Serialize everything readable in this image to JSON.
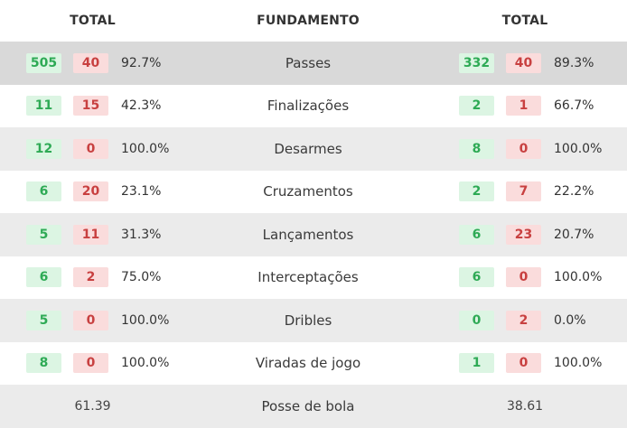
{
  "header": {
    "left": "TOTAL",
    "center": "FUNDAMENTO",
    "right": "TOTAL"
  },
  "rows": [
    {
      "name": "Passes",
      "left": {
        "good": "505",
        "bad": "40",
        "pct": "92.7%"
      },
      "right": {
        "good": "332",
        "bad": "40",
        "pct": "89.3%"
      }
    },
    {
      "name": "Finalizações",
      "left": {
        "good": "11",
        "bad": "15",
        "pct": "42.3%"
      },
      "right": {
        "good": "2",
        "bad": "1",
        "pct": "66.7%"
      }
    },
    {
      "name": "Desarmes",
      "left": {
        "good": "12",
        "bad": "0",
        "pct": "100.0%"
      },
      "right": {
        "good": "8",
        "bad": "0",
        "pct": "100.0%"
      }
    },
    {
      "name": "Cruzamentos",
      "left": {
        "good": "6",
        "bad": "20",
        "pct": "23.1%"
      },
      "right": {
        "good": "2",
        "bad": "7",
        "pct": "22.2%"
      }
    },
    {
      "name": "Lançamentos",
      "left": {
        "good": "5",
        "bad": "11",
        "pct": "31.3%"
      },
      "right": {
        "good": "6",
        "bad": "23",
        "pct": "20.7%"
      }
    },
    {
      "name": "Interceptações",
      "left": {
        "good": "6",
        "bad": "2",
        "pct": "75.0%"
      },
      "right": {
        "good": "6",
        "bad": "0",
        "pct": "100.0%"
      }
    },
    {
      "name": "Dribles",
      "left": {
        "good": "5",
        "bad": "0",
        "pct": "100.0%"
      },
      "right": {
        "good": "0",
        "bad": "2",
        "pct": "0.0%"
      }
    },
    {
      "name": "Viradas de jogo",
      "left": {
        "good": "8",
        "bad": "0",
        "pct": "100.0%"
      },
      "right": {
        "good": "1",
        "bad": "0",
        "pct": "100.0%"
      }
    }
  ],
  "possession": {
    "name": "Posse de bola",
    "left": "61.39",
    "right": "38.61"
  },
  "colors": {
    "good_bg": "#dcf5e3",
    "good_text": "#2eaa55",
    "bad_bg": "#fadcdc",
    "bad_text": "#c84040"
  }
}
